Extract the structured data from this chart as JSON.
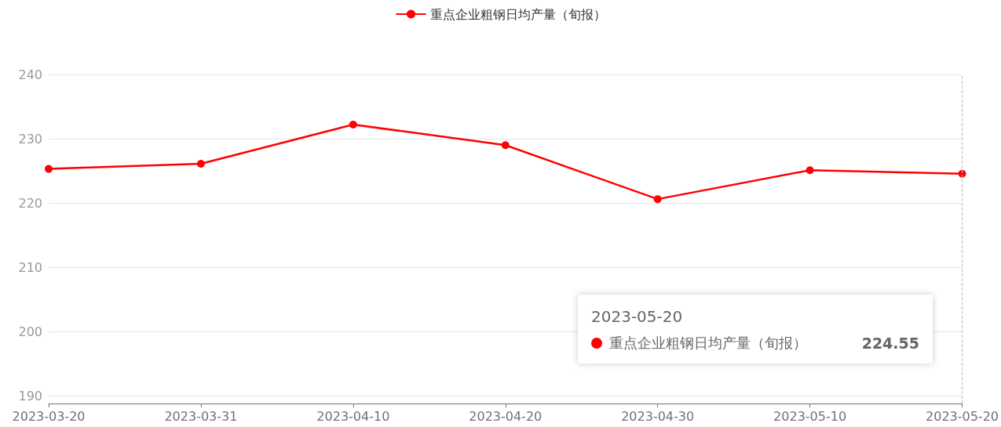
{
  "chart_data": {
    "type": "line",
    "categories": [
      "2023-03-20",
      "2023-03-31",
      "2023-04-10",
      "2023-04-20",
      "2023-04-30",
      "2023-05-10",
      "2023-05-20"
    ],
    "series": [
      {
        "name": "重点企业粗钢日均产量（旬报）",
        "color": "#ff0000",
        "values": [
          225.3,
          226.1,
          232.2,
          229.0,
          220.6,
          225.1,
          224.55
        ]
      }
    ],
    "ylim": [
      188.8,
      240
    ],
    "yticks": [
      190,
      200,
      210,
      220,
      230,
      240
    ],
    "grid": "y",
    "legend": "top",
    "marker": "circle",
    "line_style": "solid",
    "ref_lines": [
      {
        "axis": "x",
        "value": "2023-05-20",
        "label": null,
        "color": "#bbbbbb",
        "line_style": "dashed"
      }
    ],
    "annotations": [
      "2023-05-20",
      "224.55"
    ]
  }
}
